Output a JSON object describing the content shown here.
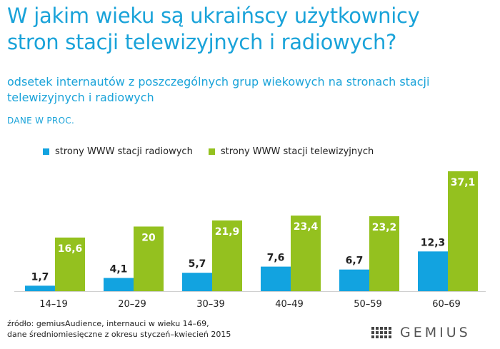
{
  "title_line1": "W jakim wieku są ukraińscy użytkownicy",
  "title_line2": "stron stacji telewizyjnych i radiowych?",
  "subtitle": "odsetek internautów z poszczególnych grup wiekowych na stronach stacji telewizyjnych i radiowych",
  "unit_note": "DANE W PROC.",
  "source_line1": "źródło: gemiusAudience, internauci w wieku 14–69,",
  "source_line2": "dane średniomiesięczne z okresu styczeń–kwiecień 2015",
  "logo_text": "GEMIUS",
  "colors": {
    "title": "#1aa3d9",
    "radio": "#12a3e0",
    "tv": "#94c11f",
    "axis": "#d0d0d0"
  },
  "chart_data": {
    "type": "bar",
    "categories": [
      "14–19",
      "20–29",
      "30–39",
      "40–49",
      "50–59",
      "60–69"
    ],
    "series": [
      {
        "name": "strony WWW stacji radiowych",
        "values": [
          1.7,
          4.1,
          5.7,
          7.6,
          6.7,
          12.3
        ],
        "labels": [
          "1,7",
          "4,1",
          "5,7",
          "7,6",
          "6,7",
          "12,3"
        ],
        "color": "#12a3e0"
      },
      {
        "name": "strony WWW stacji telewizyjnych",
        "values": [
          16.6,
          20,
          21.9,
          23.4,
          23.2,
          37.1
        ],
        "labels": [
          "16,6",
          "20",
          "21,9",
          "23,4",
          "23,2",
          "37,1"
        ],
        "color": "#94c11f"
      }
    ],
    "ylim": [
      0,
      40
    ],
    "legend": "top-left",
    "grid": false
  }
}
